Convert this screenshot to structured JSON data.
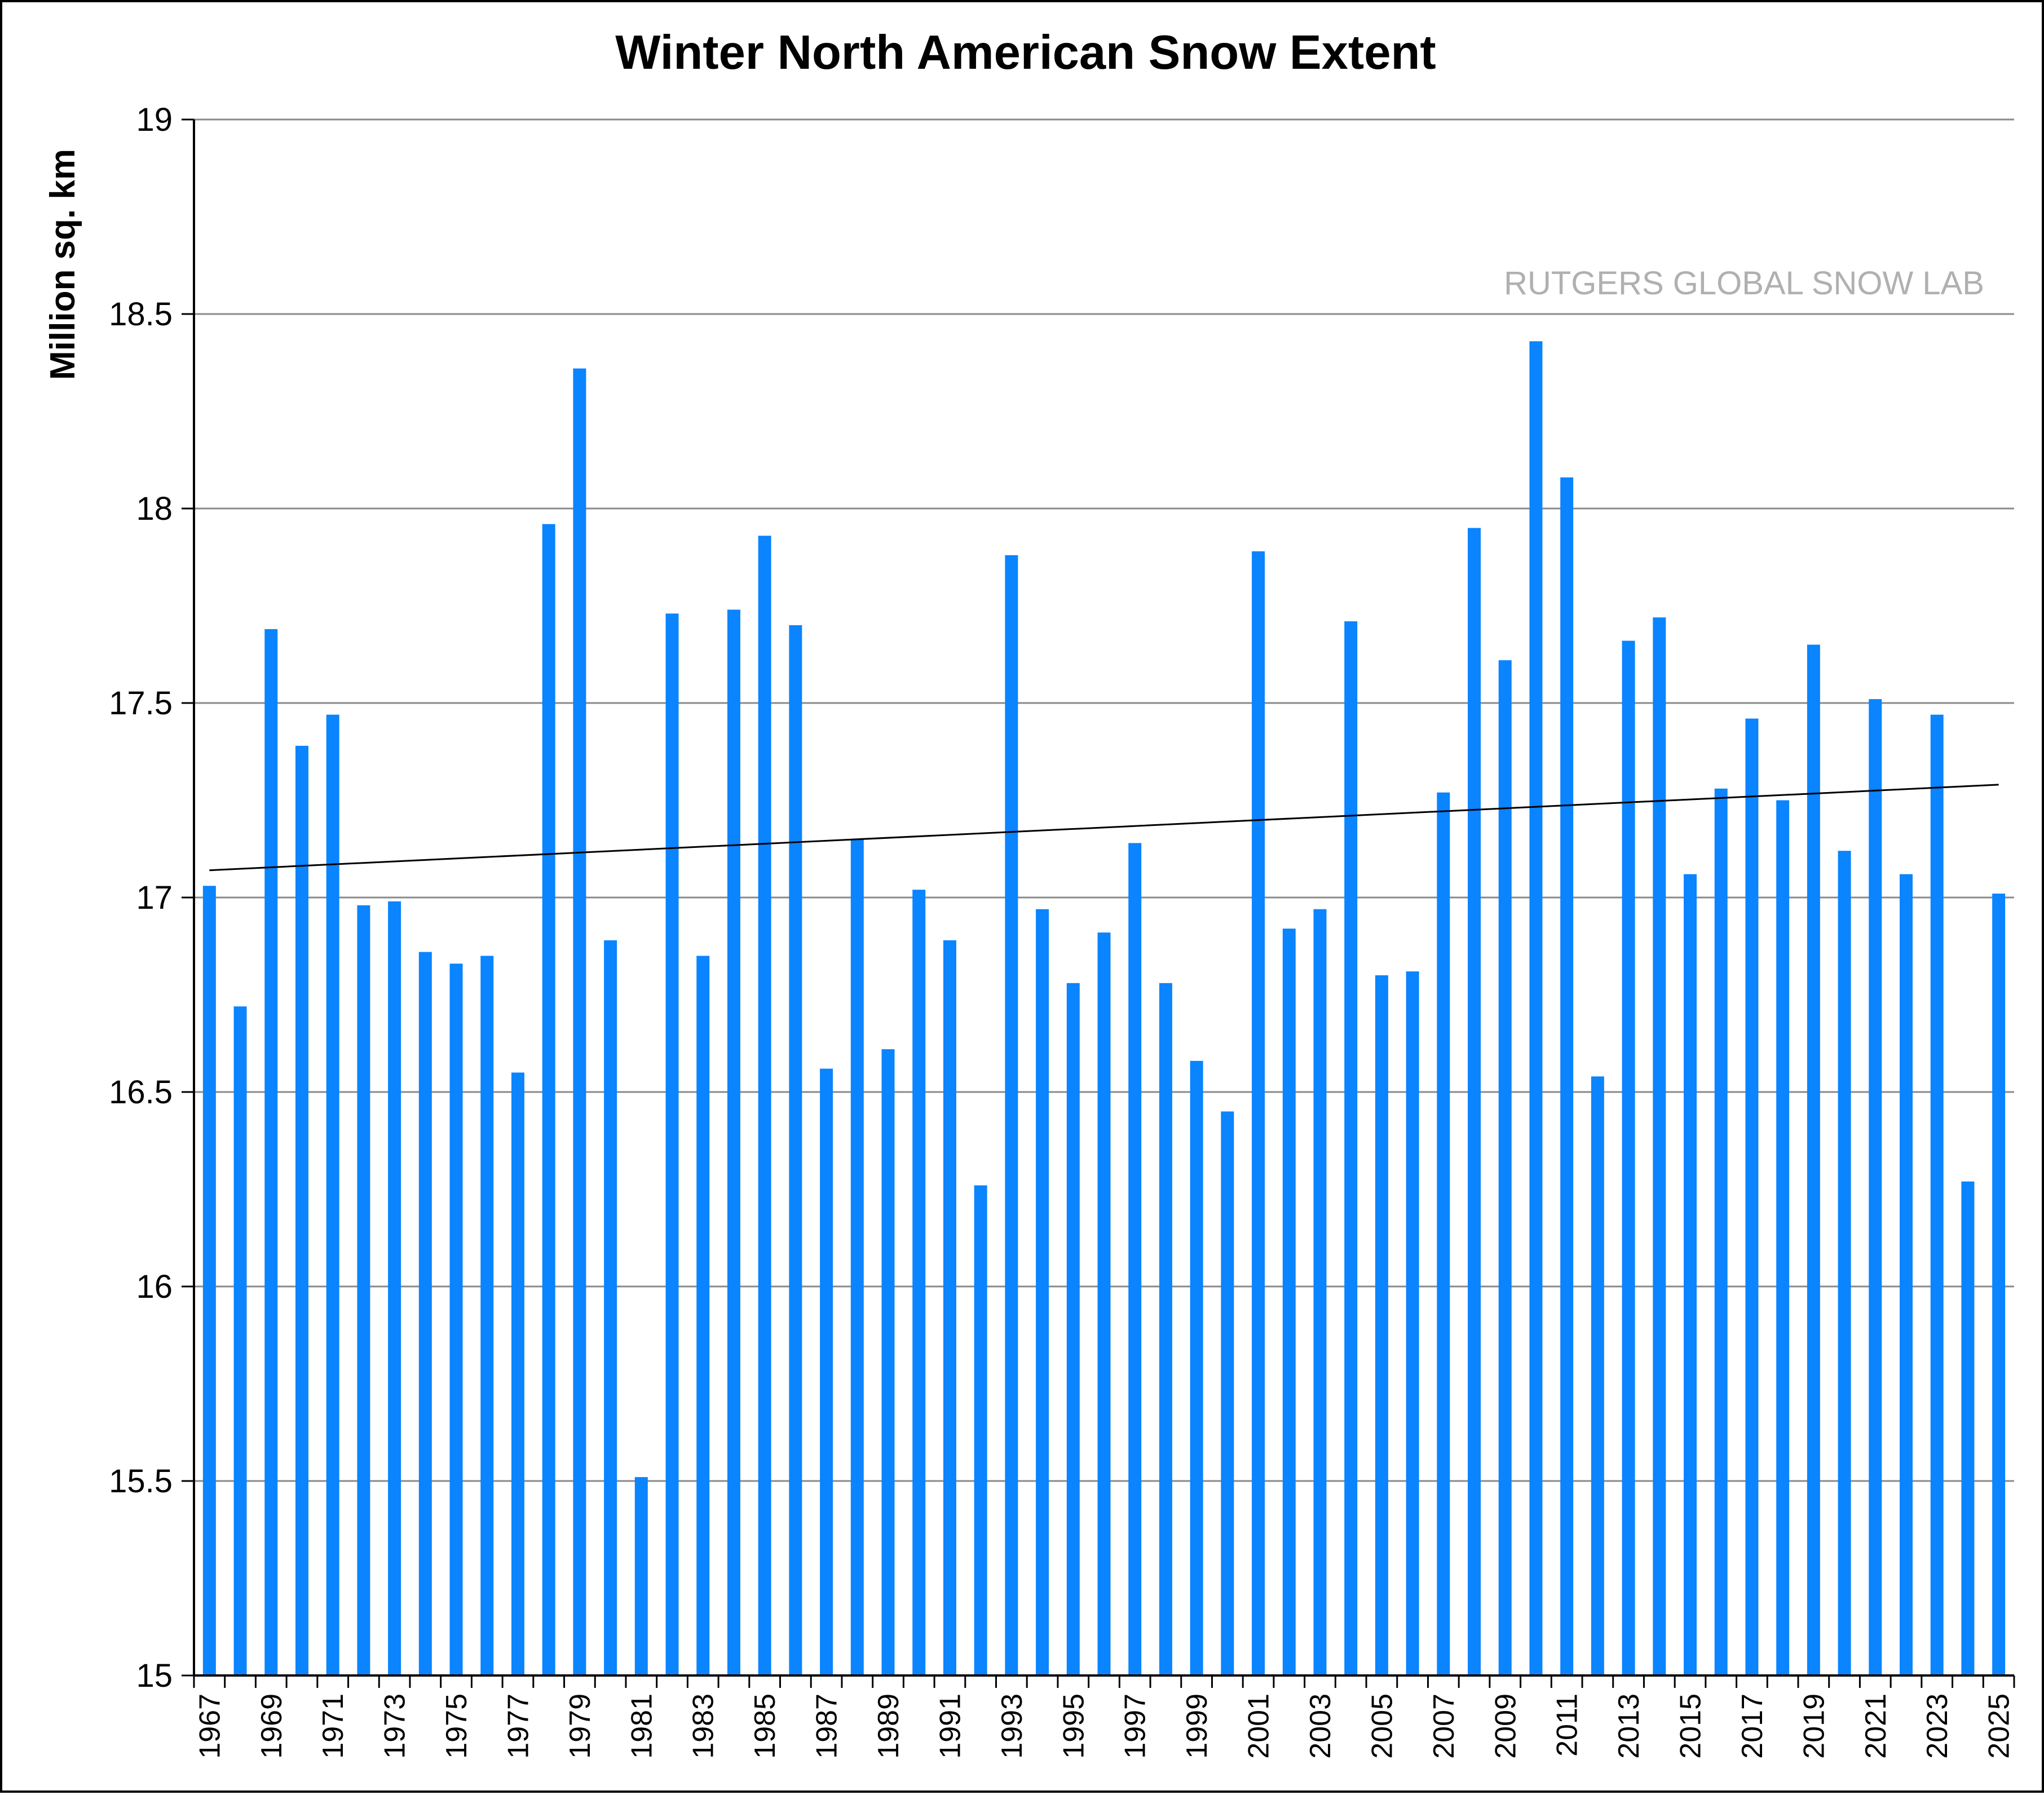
{
  "chart_data": {
    "type": "bar",
    "title": "Winter North American Snow Extent",
    "ylabel": "Million sq. km",
    "xlabel": "",
    "watermark": "RUTGERS GLOBAL SNOW LAB",
    "ylim": [
      15,
      19
    ],
    "yticks": [
      "15",
      "15.5",
      "16",
      "16.5",
      "17",
      "17.5",
      "18",
      "18.5",
      "19"
    ],
    "grid": true,
    "legend": "none",
    "bar_color": "#0a84ff",
    "trend_color": "#000000",
    "categories": [
      "1967",
      "1968",
      "1969",
      "1970",
      "1971",
      "1972",
      "1973",
      "1974",
      "1975",
      "1976",
      "1977",
      "1978",
      "1979",
      "1980",
      "1981",
      "1982",
      "1983",
      "1984",
      "1985",
      "1986",
      "1987",
      "1988",
      "1989",
      "1990",
      "1991",
      "1992",
      "1993",
      "1994",
      "1995",
      "1996",
      "1997",
      "1998",
      "1999",
      "2000",
      "2001",
      "2002",
      "2003",
      "2004",
      "2005",
      "2006",
      "2007",
      "2008",
      "2009",
      "2010",
      "2011",
      "2012",
      "2013",
      "2014",
      "2015",
      "2016",
      "2017",
      "2018",
      "2019",
      "2020",
      "2021",
      "2022",
      "2023",
      "2024",
      "2025"
    ],
    "xtick_labels": [
      "1967",
      "",
      "1969",
      "",
      "1971",
      "",
      "1973",
      "",
      "1975",
      "",
      "1977",
      "",
      "1979",
      "",
      "1981",
      "",
      "1983",
      "",
      "1985",
      "",
      "1987",
      "",
      "1989",
      "",
      "1991",
      "",
      "1993",
      "",
      "1995",
      "",
      "1997",
      "",
      "1999",
      "",
      "2001",
      "",
      "2003",
      "",
      "2005",
      "",
      "2007",
      "",
      "2009",
      "",
      "2011",
      "",
      "2013",
      "",
      "2015",
      "",
      "2017",
      "",
      "2019",
      "",
      "2021",
      "",
      "2023",
      "",
      "2025"
    ],
    "values": [
      17.03,
      16.72,
      17.69,
      17.39,
      17.47,
      16.98,
      16.99,
      16.86,
      16.83,
      16.85,
      16.55,
      17.96,
      18.36,
      16.89,
      15.51,
      17.73,
      16.85,
      17.74,
      17.93,
      17.7,
      16.56,
      17.15,
      16.61,
      17.02,
      16.89,
      16.26,
      17.88,
      16.97,
      16.78,
      16.91,
      17.14,
      16.78,
      16.58,
      16.45,
      17.89,
      16.92,
      16.97,
      17.71,
      16.8,
      16.81,
      17.27,
      17.95,
      17.61,
      18.43,
      18.08,
      16.54,
      17.66,
      17.72,
      17.06,
      17.28,
      17.46,
      17.25,
      17.65,
      17.12,
      17.51,
      17.06,
      17.47,
      16.27,
      17.01
    ],
    "trend": {
      "start": 17.07,
      "end": 17.29
    }
  }
}
